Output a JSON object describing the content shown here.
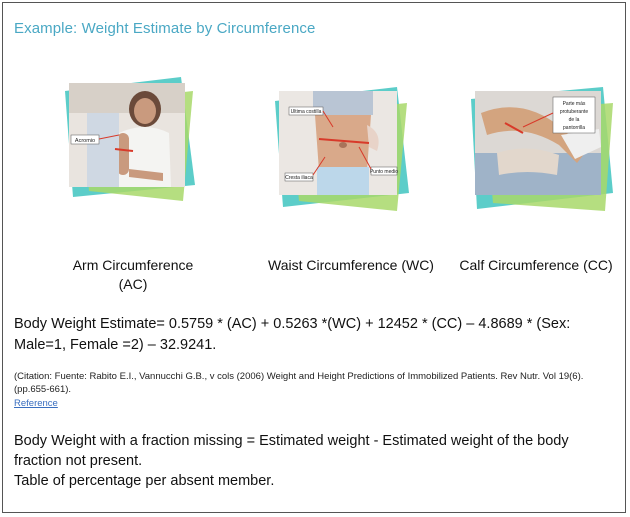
{
  "title": "Example: Weight Estimate by Circumference",
  "photos": {
    "arm": {
      "labels": [
        "Acromio"
      ]
    },
    "waist": {
      "labels": [
        "Ultima costilla",
        "Cresta iliaca",
        "Punto medio"
      ]
    },
    "calf": {
      "labels": [
        "Parte más",
        "protuberante",
        "de la",
        "pantorrilla"
      ]
    }
  },
  "captions": {
    "arm": "Arm Circumference (AC)",
    "waist": "Waist Circumference (WC)",
    "calf": "Calf Circumference (CC)"
  },
  "formula": "Body Weight Estimate= 0.5759 * (AC) + 0.5263 *(WC) + 12452 * (CC) – 4.8689 * (Sex: Male=1, Female =2) – 32.9241.",
  "citation": "(Citation: Fuente: Rabito E.I., Vannucchi G.B., v cols (2006) Weight and Height Predictions of Immobilized Patients. Rev Nutr. Vol 19(6). (pp.655-661).",
  "reference_link": "Reference",
  "bottom": {
    "line1": "Body Weight with a fraction missing = Estimated weight - Estimated weight of the body fraction not present.",
    "line2": "Table of percentage per absent member."
  },
  "colors": {
    "title": "#4aa8c4",
    "teal": "#3fc4c0",
    "green": "#a8d86a",
    "measure_line": "#d83a2a",
    "link": "#3a6fc0"
  }
}
